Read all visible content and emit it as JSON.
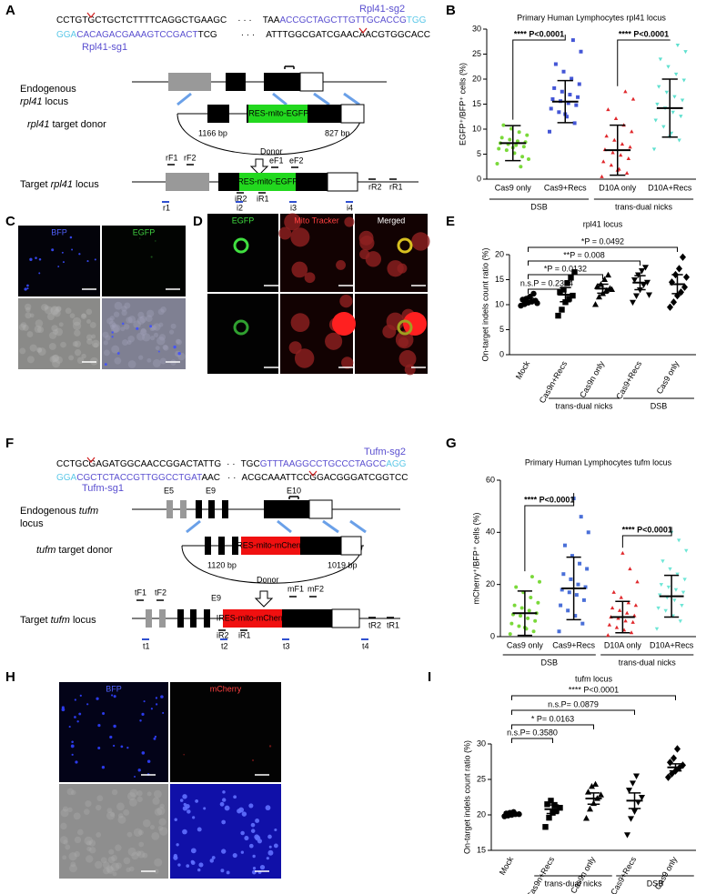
{
  "panel_labels": [
    "A",
    "B",
    "C",
    "D",
    "E",
    "F",
    "G",
    "H",
    "I"
  ],
  "panel_a": {
    "sg2_label": "Rpl41-sg2",
    "sg1_label": "Rpl41-sg1",
    "seq_top": [
      "CCTGTGCTGCTCTTTTCAGGCTGAAGC",
      "· · ·",
      "TAA",
      "ACCGCTAGCTTGTTGCACCG",
      "TGG"
    ],
    "seq_bottom": [
      "GGA",
      "CACAGACGAAAGTCCGACT",
      "TCG",
      "· · ·",
      "ATTTGGCGATCGAACAACGTGGCACC"
    ],
    "endogenous": [
      "Endogenous",
      "rpl41",
      "locus"
    ],
    "donor_label": [
      "rpl41",
      "target donor"
    ],
    "cassette": "IRES-mito-EGFP",
    "left_arm": "1166 bp",
    "right_arm": "827 bp",
    "donor": "Donor",
    "target": [
      "Target",
      "rpl41",
      "locus"
    ],
    "primers": [
      "rF1",
      "rF2",
      "eF1",
      "eF2",
      "iR2",
      "iR1",
      "rR2",
      "rR1"
    ],
    "amplicons": [
      "r1",
      "i2",
      "i3",
      "i4"
    ]
  },
  "panel_c": {
    "channels": [
      "BFP",
      "EGFP"
    ]
  },
  "panel_d": {
    "channels": [
      "EGFP",
      "Mito Tracker",
      "Merged"
    ]
  },
  "panel_f": {
    "sg2_label": "Tufm-sg2",
    "sg1_label": "Tufm-sg1",
    "seq_top": [
      "CCTGCGAGATGGCAACCGGACTATTG",
      "· ·",
      "TGC",
      "GTTTAAGGCCTGCCCTAGCC",
      "AGG"
    ],
    "seq_bottom": [
      "GGA",
      "CGCTCTACCGTTGGCCTGAT",
      "AAC",
      "· ·",
      "ACGCAAATTCCGGACGGGATCGGTCC"
    ],
    "endogenous": [
      "Endogenous",
      "tufm",
      "locus"
    ],
    "exons": [
      "E5",
      "E9",
      "E10"
    ],
    "donor_label": [
      "tufm",
      "target donor"
    ],
    "cassette": "IRES-mito-mCherry",
    "left_arm": "1120 bp",
    "right_arm": "1019 bp",
    "donor": "Donor",
    "target": [
      "Target",
      "tufm",
      "locus"
    ],
    "target_exon": "E9",
    "primers": [
      "tF1",
      "tF2",
      "mF1",
      "mF2",
      "iR2",
      "iR1",
      "tR2",
      "tR1"
    ],
    "amplicons": [
      "t1",
      "t2",
      "t3",
      "t4"
    ]
  },
  "panel_h": {
    "channels": [
      "BFP",
      "mCherry"
    ]
  },
  "chart_data": [
    {
      "type": "dot",
      "title": "Primary Human Lymphocytes rpl41 locus",
      "ylabel": "EGFP⁺/BFP⁺ cells (%)",
      "categories": [
        "Cas9 only",
        "Cas9+Recs",
        "D10A only",
        "D10A+Recs"
      ],
      "groups": [
        "DSB",
        "trans-dual nicks"
      ],
      "colors": [
        "#7ad93a",
        "#4456d6",
        "#e0282c",
        "#5fe0cf"
      ],
      "markers": [
        "circle",
        "square",
        "triangle",
        "triangle-down"
      ],
      "points": [
        [
          3.1,
          4.5,
          5.2,
          5.8,
          6.1,
          6.5,
          6.8,
          7.0,
          7.2,
          7.4,
          7.6,
          7.9,
          8.3,
          8.8,
          9.4,
          10.1,
          10.8,
          4.0,
          2.5,
          6.3
        ],
        [
          9.5,
          11.2,
          12.5,
          13.4,
          14.1,
          14.8,
          15.2,
          15.6,
          16.0,
          16.4,
          16.9,
          17.5,
          18.2,
          19.0,
          20.1,
          21.5,
          23.0,
          25.5,
          27.8,
          13.0
        ],
        [
          0.5,
          1.2,
          2.0,
          2.8,
          3.5,
          4.1,
          4.8,
          5.3,
          5.9,
          6.4,
          7.0,
          7.8,
          8.6,
          9.5,
          10.8,
          12.1,
          13.9,
          16.0,
          17.5,
          1.8
        ],
        [
          6.0,
          7.8,
          9.2,
          10.5,
          11.8,
          12.6,
          13.4,
          14.2,
          15.0,
          15.8,
          16.5,
          17.4,
          18.5,
          19.8,
          21.0,
          22.5,
          24.0,
          25.5,
          26.8,
          8.5
        ]
      ],
      "means": [
        7.2,
        15.5,
        5.8,
        14.2
      ],
      "errors": [
        3.5,
        4.2,
        5.0,
        5.8
      ],
      "ylim": [
        0,
        30
      ],
      "yticks": [
        0,
        5,
        10,
        15,
        20,
        25,
        30
      ],
      "comparisons": [
        "**** P<0.0001",
        "**** P<0.0001"
      ]
    },
    {
      "type": "dot",
      "title": "rpl41 locus",
      "ylabel": "On-target indels count ratio (%)",
      "categories": [
        "Mock",
        "Cas9n+Recs",
        "Cas9n only",
        "Cas9+Recs",
        "Cas9 only"
      ],
      "groups": [
        "trans-dual nicks",
        "DSB"
      ],
      "colors": [
        "#000000",
        "#000000",
        "#000000",
        "#000000",
        "#000000"
      ],
      "markers": [
        "circle",
        "square",
        "triangle",
        "triangle-down",
        "diamond"
      ],
      "points": [
        [
          9.8,
          10.1,
          10.4,
          10.6,
          10.8,
          11.0,
          11.2,
          11.6,
          12.2,
          10.3
        ],
        [
          7.8,
          9.0,
          10.5,
          11.2,
          11.8,
          12.5,
          13.0,
          14.3,
          15.4,
          16.5
        ],
        [
          10.0,
          11.5,
          12.2,
          12.8,
          13.2,
          13.6,
          14.0,
          15.0,
          15.9,
          13.0
        ],
        [
          10.5,
          11.8,
          13.0,
          14.0,
          14.5,
          15.0,
          16.0,
          16.8,
          17.5,
          12.0
        ],
        [
          9.5,
          10.5,
          11.8,
          12.5,
          13.5,
          14.5,
          16.0,
          17.2,
          19.5,
          15.5
        ]
      ],
      "means": [
        10.8,
        12.0,
        13.2,
        14.4,
        14.1
      ],
      "errors": [
        0.5,
        1.4,
        0.9,
        1.4,
        1.9
      ],
      "ylim": [
        0,
        20
      ],
      "yticks": [
        0,
        5,
        10,
        15,
        20
      ],
      "comparisons": [
        "n.s.P = 0.2354",
        "*P = 0.0132",
        "**P = 0.008",
        "*P = 0.0492"
      ]
    },
    {
      "type": "dot",
      "title": "Primary Human Lymphocytes tufm locus",
      "ylabel": "mCherry⁺/BFP⁺ cells (%)",
      "categories": [
        "Cas9 only",
        "Cas9+Recs",
        "D10A only",
        "D10A+Recs"
      ],
      "groups": [
        "DSB",
        "trans-dual nicks"
      ],
      "colors": [
        "#7ad93a",
        "#4a6fd8",
        "#e0282c",
        "#6ee6d6"
      ],
      "markers": [
        "circle",
        "square",
        "triangle",
        "triangle-down"
      ],
      "points": [
        [
          1,
          2,
          3,
          4,
          5,
          6,
          7,
          8,
          8.5,
          9,
          10,
          11,
          12,
          13,
          15,
          17,
          19,
          21,
          23,
          3.5
        ],
        [
          2,
          5,
          8,
          10,
          12,
          14,
          16,
          17,
          18,
          19,
          20,
          22,
          24,
          26,
          28,
          31,
          35,
          40,
          46,
          53
        ],
        [
          0.5,
          1.5,
          2.5,
          3.5,
          4.5,
          5.5,
          6,
          7,
          7.5,
          8,
          9,
          10,
          11,
          12,
          13,
          15,
          17,
          21,
          26,
          32
        ],
        [
          3,
          6,
          8,
          10,
          11,
          12,
          14,
          15,
          16,
          17,
          18,
          19,
          20,
          22,
          24,
          26,
          29,
          33,
          37,
          40
        ]
      ],
      "means": [
        9,
        18.5,
        7.5,
        15.5
      ],
      "errors": [
        8.5,
        12,
        6,
        8
      ],
      "ylim": [
        0,
        60
      ],
      "yticks": [
        0,
        20,
        40,
        60
      ],
      "comparisons": [
        "**** P<0.0001",
        "**** P<0.0001"
      ]
    },
    {
      "type": "dot",
      "title": "tufm locus",
      "ylabel": "On-target indels count ratio (%)",
      "categories": [
        "Mock",
        "Cas9n+Recs",
        "Cas9n only",
        "Cas9+Recs",
        "Cas9 only"
      ],
      "groups": [
        "trans-dual nicks",
        "DSB"
      ],
      "colors": [
        "#000000",
        "#000000",
        "#000000",
        "#000000",
        "#000000"
      ],
      "markers": [
        "circle",
        "square",
        "triangle",
        "triangle-down",
        "diamond"
      ],
      "points": [
        [
          19.8,
          19.9,
          20.0,
          20.1,
          20.1,
          20.2,
          20.3,
          20.4
        ],
        [
          18.3,
          19.6,
          20.3,
          20.6,
          21.0,
          21.5,
          22.0,
          21.4
        ],
        [
          19.5,
          20.8,
          21.6,
          22.3,
          22.8,
          23.2,
          24.0,
          24.3
        ],
        [
          17.2,
          19.5,
          20.5,
          21.8,
          22.5,
          23.5,
          24.5,
          25.5
        ],
        [
          25.3,
          25.8,
          26.2,
          26.6,
          27.0,
          27.4,
          28.0,
          29.3
        ]
      ],
      "means": [
        20.1,
        20.8,
        22.3,
        22.0,
        26.7
      ],
      "errors": [
        0.2,
        0.6,
        0.8,
        1.1,
        0.5
      ],
      "ylim": [
        15,
        30
      ],
      "yticks": [
        15,
        20,
        25,
        30
      ],
      "comparisons": [
        "**** P<0.0001",
        "n.s.P= 0.0879",
        "* P= 0.0163",
        "n.s.P= 0.3580"
      ]
    }
  ]
}
